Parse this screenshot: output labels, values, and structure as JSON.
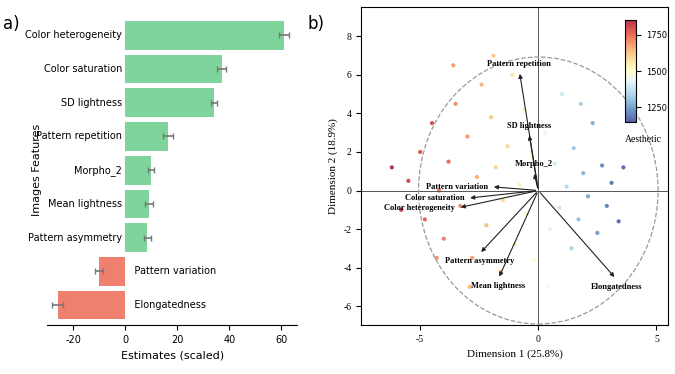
{
  "chart_data": [
    {
      "type": "bar",
      "panel_label": "a)",
      "orientation": "horizontal",
      "xlabel": "Estimates (scaled)",
      "ylabel": "Images Features",
      "categories": [
        "Color heterogeneity",
        "Color saturation",
        "SD lightness",
        "Pattern repetition",
        "Morpho_2",
        "Mean lightness",
        "Pattern asymmetry",
        "Pattern variation",
        "Elongatedness"
      ],
      "values": [
        61,
        37,
        34,
        16.5,
        10,
        9,
        8.5,
        -10,
        -26
      ],
      "errors": [
        2,
        1.8,
        1.2,
        2,
        1.2,
        1.5,
        1.5,
        1.5,
        2
      ],
      "colors": [
        "#7fd49b",
        "#7fd49b",
        "#7fd49b",
        "#7fd49b",
        "#7fd49b",
        "#7fd49b",
        "#7fd49b",
        "#ef7f6e",
        "#ef7f6e"
      ],
      "xlim": [
        -30,
        66
      ],
      "xticks": [
        -20,
        0,
        20,
        40,
        60
      ],
      "grid": false
    },
    {
      "type": "scatter",
      "panel_label": "b)",
      "marker": "o",
      "grid": false,
      "xlabel": "Dimension 1 (25.8%)",
      "ylabel": "Dimension 2 (18.9%)",
      "xlim": [
        -7.5,
        5.5
      ],
      "xticks": [
        -5,
        0,
        5
      ],
      "ylim": [
        -7,
        9.5
      ],
      "yticks": [
        -6,
        -4,
        -2,
        0,
        2,
        4,
        6,
        8
      ],
      "x": [
        -5.5,
        -5.0,
        -4.8,
        -4.5,
        -4.2,
        -4.0,
        -3.8,
        -3.5,
        -3.3,
        -3.0,
        -2.8,
        -2.6,
        -2.4,
        -2.2,
        -2.0,
        -1.8,
        -1.6,
        -1.5,
        -1.3,
        -1.1,
        -1.0,
        -0.8,
        -0.6,
        -0.5,
        -0.3,
        -0.2,
        0.0,
        0.2,
        0.3,
        0.5,
        0.7,
        0.9,
        1.0,
        1.2,
        1.4,
        1.5,
        1.7,
        1.9,
        2.1,
        2.3,
        2.5,
        2.7,
        2.9,
        3.1,
        3.4,
        3.6,
        -4.3,
        -3.6,
        -2.9,
        -1.9,
        0.4,
        1.8,
        -5.8,
        -6.2
      ],
      "y": [
        0.5,
        2.0,
        -1.5,
        3.5,
        0.0,
        -2.5,
        1.5,
        4.5,
        -0.8,
        2.8,
        -3.5,
        0.7,
        5.5,
        -1.8,
        3.8,
        1.2,
        -4.2,
        -0.5,
        2.3,
        6.0,
        -2.8,
        0.3,
        4.2,
        -1.2,
        1.8,
        -3.6,
        0.8,
        -0.4,
        3.0,
        -2.0,
        1.4,
        -0.9,
        5.0,
        0.2,
        -3.0,
        2.2,
        -1.5,
        0.9,
        -0.3,
        3.5,
        -2.2,
        1.3,
        -0.8,
        0.4,
        -1.6,
        1.2,
        -3.5,
        6.5,
        -5.0,
        7.0,
        -5.0,
        4.5,
        -1.0,
        1.2
      ],
      "aesthetic": [
        1800,
        1780,
        1760,
        1790,
        1740,
        1720,
        1750,
        1700,
        1710,
        1690,
        1680,
        1660,
        1650,
        1640,
        1620,
        1600,
        1610,
        1580,
        1590,
        1570,
        1560,
        1540,
        1530,
        1510,
        1500,
        1490,
        1470,
        1450,
        1440,
        1420,
        1400,
        1380,
        1390,
        1350,
        1340,
        1320,
        1300,
        1280,
        1260,
        1270,
        1240,
        1220,
        1210,
        1190,
        1180,
        1170,
        1700,
        1680,
        1650,
        1620,
        1460,
        1330,
        1820,
        1850
      ],
      "colorbar": {
        "label": "Aesthetic",
        "range": [
          1150,
          1850
        ],
        "ticks": [
          1250,
          1500,
          1750
        ]
      },
      "loadings": [
        {
          "name": "Pattern repetition",
          "x": -0.8,
          "y": 6.2
        },
        {
          "name": "SD lightness",
          "x": -0.4,
          "y": 3.0
        },
        {
          "name": "Morpho_2",
          "x": -0.2,
          "y": 1.0
        },
        {
          "name": "Pattern variation",
          "x": -2.0,
          "y": 0.2
        },
        {
          "name": "Color saturation",
          "x": -3.0,
          "y": -0.4
        },
        {
          "name": "Color heterogeneity",
          "x": -3.4,
          "y": -0.9
        },
        {
          "name": "Pattern asymmetry",
          "x": -2.5,
          "y": -3.3
        },
        {
          "name": "Mean lightness",
          "x": -1.7,
          "y": -4.6
        },
        {
          "name": "Elongatedness",
          "x": 3.3,
          "y": -4.6
        }
      ]
    }
  ]
}
